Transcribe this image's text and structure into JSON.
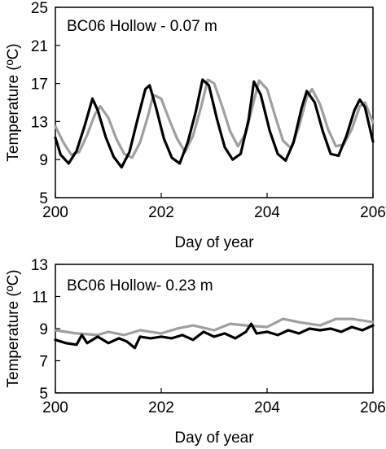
{
  "chart_data": [
    {
      "type": "line",
      "annotation": "BC06 Hollow - 0.07 m",
      "xlabel": "Day of year",
      "ylabel": "Temperature (ºC)",
      "xlim": [
        200,
        206
      ],
      "ylim": [
        5,
        25
      ],
      "xticks": [
        "200",
        "202",
        "204",
        "206"
      ],
      "yticks": [
        "5",
        "9",
        "13",
        "17",
        "21",
        "25"
      ],
      "grid": false,
      "series": [
        {
          "color": "#000000",
          "x": [
            200.0,
            200.1,
            200.25,
            200.4,
            200.55,
            200.7,
            200.8,
            200.95,
            201.1,
            201.25,
            201.4,
            201.55,
            201.7,
            201.78,
            201.9,
            202.05,
            202.2,
            202.35,
            202.5,
            202.65,
            202.78,
            202.9,
            203.05,
            203.2,
            203.35,
            203.5,
            203.65,
            203.75,
            203.88,
            204.05,
            204.2,
            204.35,
            204.5,
            204.65,
            204.75,
            204.9,
            205.05,
            205.2,
            205.35,
            205.5,
            205.65,
            205.75,
            205.85,
            206.0
          ],
          "y": [
            11.3,
            9.5,
            8.6,
            9.9,
            12.5,
            15.4,
            14.2,
            11.4,
            9.3,
            8.2,
            9.8,
            13.2,
            16.4,
            16.8,
            14.5,
            11.2,
            9.2,
            8.6,
            10.8,
            14.0,
            17.4,
            16.8,
            13.3,
            10.3,
            9.0,
            9.6,
            13.2,
            17.2,
            15.8,
            12.0,
            9.6,
            8.9,
            10.8,
            14.4,
            16.2,
            15.0,
            12.0,
            9.6,
            9.4,
            11.5,
            14.2,
            15.3,
            14.5,
            10.9
          ]
        },
        {
          "color": "#a0a0a0",
          "x": [
            200.0,
            200.15,
            200.3,
            200.45,
            200.6,
            200.75,
            200.85,
            201.0,
            201.15,
            201.3,
            201.45,
            201.6,
            201.75,
            201.85,
            202.0,
            202.15,
            202.3,
            202.45,
            202.6,
            202.75,
            202.88,
            203.0,
            203.15,
            203.3,
            203.45,
            203.6,
            203.75,
            203.85,
            204.0,
            204.15,
            204.3,
            204.45,
            204.6,
            204.75,
            204.85,
            205.0,
            205.15,
            205.3,
            205.45,
            205.6,
            205.75,
            205.85,
            206.0
          ],
          "y": [
            12.5,
            10.8,
            9.5,
            9.8,
            11.6,
            13.8,
            14.6,
            13.4,
            11.2,
            9.6,
            9.2,
            10.8,
            13.6,
            15.8,
            15.4,
            13.2,
            11.2,
            9.8,
            11.5,
            14.5,
            17.4,
            17.0,
            14.6,
            12.0,
            10.4,
            11.8,
            15.2,
            17.3,
            16.4,
            13.6,
            11.0,
            10.2,
            12.4,
            15.6,
            16.4,
            14.8,
            12.2,
            10.4,
            10.6,
            12.2,
            14.6,
            15.0,
            12.9
          ]
        }
      ]
    },
    {
      "type": "line",
      "annotation": "BC06 Hollow- 0.23 m",
      "xlabel": "Day of year",
      "ylabel": "Temperature (ºC)",
      "xlim": [
        200,
        206
      ],
      "ylim": [
        5,
        13
      ],
      "xticks": [
        "200",
        "202",
        "204",
        "206"
      ],
      "yticks": [
        "5",
        "7",
        "9",
        "11",
        "13"
      ],
      "grid": false,
      "series": [
        {
          "color": "#000000",
          "x": [
            200.0,
            200.2,
            200.4,
            200.5,
            200.6,
            200.8,
            201.0,
            201.2,
            201.35,
            201.5,
            201.6,
            201.8,
            202.0,
            202.2,
            202.4,
            202.6,
            202.8,
            203.0,
            203.2,
            203.4,
            203.6,
            203.7,
            203.8,
            204.0,
            204.2,
            204.4,
            204.6,
            204.8,
            205.0,
            205.2,
            205.4,
            205.6,
            205.8,
            206.0
          ],
          "y": [
            8.3,
            8.1,
            8.0,
            8.6,
            8.1,
            8.5,
            8.1,
            8.4,
            8.2,
            7.8,
            8.5,
            8.4,
            8.5,
            8.4,
            8.6,
            8.3,
            8.8,
            8.5,
            8.7,
            8.4,
            8.8,
            9.3,
            8.7,
            8.8,
            8.6,
            8.9,
            8.7,
            9.0,
            8.9,
            9.0,
            8.8,
            9.1,
            8.9,
            9.2
          ]
        },
        {
          "color": "#a0a0a0",
          "x": [
            200.0,
            200.4,
            200.8,
            201.0,
            201.3,
            201.6,
            202.0,
            202.3,
            202.6,
            203.0,
            203.3,
            203.6,
            204.0,
            204.3,
            204.6,
            205.0,
            205.3,
            205.6,
            206.0
          ],
          "y": [
            8.9,
            8.7,
            8.6,
            8.8,
            8.6,
            8.9,
            8.7,
            9.0,
            9.2,
            8.9,
            9.3,
            9.2,
            9.1,
            9.6,
            9.4,
            9.2,
            9.6,
            9.6,
            9.4
          ]
        }
      ]
    }
  ]
}
